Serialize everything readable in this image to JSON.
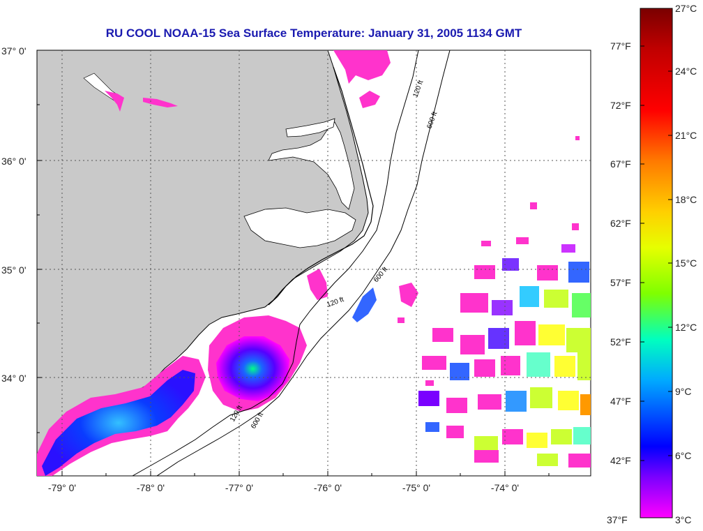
{
  "title": "RU COOL  NOAA-15  Sea Surface Temperature:  January 31, 2005 1134 GMT",
  "map": {
    "lat_labels": [
      "37° 0'",
      "36° 0'",
      "35° 0'",
      "34° 0'"
    ],
    "lon_labels": [
      "-79° 0'",
      "-78° 0'",
      "-77° 0'",
      "-76° 0'",
      "-75° 0'",
      "-74° 0'"
    ],
    "isobath_labels": [
      "120 ft",
      "600 ft"
    ],
    "colors": {
      "land": "#c9c9c9",
      "ocean": "#ffffff",
      "coast": "#000000"
    }
  },
  "colorbar": {
    "celsius_labels": [
      "27°C",
      "24°C",
      "21°C",
      "18°C",
      "15°C",
      "12°C",
      "9°C",
      "6°C",
      "3°C"
    ],
    "fahrenheit_labels": [
      "77°F",
      "72°F",
      "67°F",
      "62°F",
      "57°F",
      "52°F",
      "47°F",
      "42°F",
      "37°F"
    ],
    "gradient_colors": [
      "#7a0000",
      "#ff0000",
      "#ff7a00",
      "#ffff00",
      "#7fff00",
      "#00ffbf",
      "#00aaff",
      "#0000ff",
      "#7a00ff",
      "#ff00ff"
    ]
  }
}
